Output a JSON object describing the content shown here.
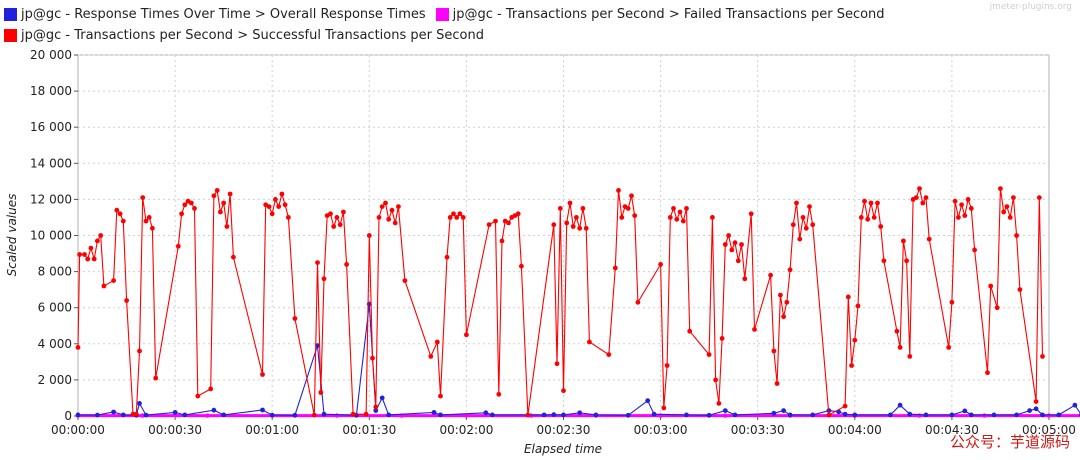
{
  "watermark_top": "jmeter-plugins.org",
  "watermark_bottom": "公众号：芋道源码",
  "chart_data": {
    "type": "line",
    "xlabel": "Elapsed time",
    "ylabel": "Scaled values",
    "xlim": [
      0,
      300
    ],
    "ylim": [
      0,
      20000
    ],
    "y_ticks": [
      0,
      2000,
      4000,
      6000,
      8000,
      10000,
      12000,
      14000,
      16000,
      18000,
      20000
    ],
    "y_tick_labels": [
      "0",
      "2 000",
      "4 000",
      "6 000",
      "8 000",
      "10 000",
      "12 000",
      "14 000",
      "16 000",
      "18 000",
      "20 000"
    ],
    "x_ticks": [
      0,
      30,
      60,
      90,
      120,
      150,
      180,
      210,
      240,
      270,
      300
    ],
    "x_tick_labels": [
      "00:00:00",
      "00:00:30",
      "00:01:00",
      "00:01:30",
      "00:02:00",
      "00:02:30",
      "00:03:00",
      "00:03:30",
      "00:04:00",
      "00:04:30",
      "00:05:00"
    ],
    "grid": true,
    "legend_position": "top",
    "series": [
      {
        "name": "jp@gc - Response Times Over Time > Overall Response Times",
        "color": "#2222dd",
        "points": [
          [
            0,
            60
          ],
          [
            6,
            50
          ],
          [
            11,
            220
          ],
          [
            14,
            60
          ],
          [
            18,
            40
          ],
          [
            19,
            700
          ],
          [
            21,
            50
          ],
          [
            30,
            200
          ],
          [
            33,
            60
          ],
          [
            42,
            320
          ],
          [
            45,
            60
          ],
          [
            57,
            330
          ],
          [
            60,
            50
          ],
          [
            67,
            40
          ],
          [
            74,
            3900
          ],
          [
            76,
            100
          ],
          [
            86,
            40
          ],
          [
            90,
            6200
          ],
          [
            92,
            300
          ],
          [
            94,
            1000
          ],
          [
            96,
            60
          ],
          [
            110,
            200
          ],
          [
            112,
            60
          ],
          [
            126,
            180
          ],
          [
            128,
            60
          ],
          [
            144,
            60
          ],
          [
            147,
            70
          ],
          [
            150,
            60
          ],
          [
            155,
            180
          ],
          [
            160,
            60
          ],
          [
            170,
            40
          ],
          [
            176,
            850
          ],
          [
            178,
            100
          ],
          [
            188,
            60
          ],
          [
            195,
            40
          ],
          [
            200,
            300
          ],
          [
            203,
            60
          ],
          [
            215,
            150
          ],
          [
            218,
            300
          ],
          [
            220,
            60
          ],
          [
            227,
            60
          ],
          [
            232,
            300
          ],
          [
            235,
            230
          ],
          [
            237,
            100
          ],
          [
            240,
            60
          ],
          [
            251,
            60
          ],
          [
            254,
            600
          ],
          [
            257,
            100
          ],
          [
            262,
            60
          ],
          [
            270,
            60
          ],
          [
            274,
            280
          ],
          [
            276,
            60
          ],
          [
            283,
            60
          ],
          [
            290,
            60
          ],
          [
            294,
            300
          ],
          [
            296,
            400
          ],
          [
            298,
            60
          ],
          [
            303,
            60
          ],
          [
            308,
            600
          ],
          [
            310,
            60
          ]
        ]
      },
      {
        "name": "jp@gc - Transactions per Second > Failed Transactions per Second",
        "color": "#ff00ff",
        "points": [
          [
            0,
            20
          ],
          [
            20,
            20
          ],
          [
            40,
            20
          ],
          [
            60,
            20
          ],
          [
            80,
            20
          ],
          [
            100,
            20
          ],
          [
            120,
            20
          ],
          [
            140,
            20
          ],
          [
            160,
            20
          ],
          [
            180,
            20
          ],
          [
            200,
            20
          ],
          [
            220,
            20
          ],
          [
            240,
            20
          ],
          [
            260,
            20
          ],
          [
            280,
            20
          ],
          [
            300,
            20
          ],
          [
            311,
            20
          ]
        ]
      },
      {
        "name": "jp@gc - Transactions per Second > Successful Transactions per Second",
        "color": "#ff0000",
        "points": [
          [
            0,
            3800
          ],
          [
            0.5,
            8950
          ],
          [
            2,
            8950
          ],
          [
            3,
            8700
          ],
          [
            4,
            9300
          ],
          [
            5,
            8700
          ],
          [
            6,
            9700
          ],
          [
            7,
            10000
          ],
          [
            8,
            7200
          ],
          [
            11,
            7500
          ],
          [
            12,
            11400
          ],
          [
            13,
            11200
          ],
          [
            14,
            10800
          ],
          [
            15,
            6400
          ],
          [
            17,
            100
          ],
          [
            18,
            100
          ],
          [
            19,
            3600
          ],
          [
            20,
            12100
          ],
          [
            21,
            10800
          ],
          [
            22,
            11000
          ],
          [
            23,
            10400
          ],
          [
            24,
            2100
          ],
          [
            31,
            9400
          ],
          [
            32,
            11200
          ],
          [
            33,
            11700
          ],
          [
            34,
            11900
          ],
          [
            35,
            11800
          ],
          [
            36,
            11500
          ],
          [
            37,
            1100
          ],
          [
            41,
            1500
          ],
          [
            42,
            12200
          ],
          [
            43,
            12500
          ],
          [
            44,
            11300
          ],
          [
            45,
            11800
          ],
          [
            46,
            10500
          ],
          [
            47,
            12300
          ],
          [
            48,
            8800
          ],
          [
            57,
            2300
          ],
          [
            58,
            11700
          ],
          [
            59,
            11600
          ],
          [
            60,
            11200
          ],
          [
            61,
            12000
          ],
          [
            62,
            11600
          ],
          [
            63,
            12300
          ],
          [
            64,
            11700
          ],
          [
            65,
            11000
          ],
          [
            67,
            5400
          ],
          [
            73,
            50
          ],
          [
            74,
            8500
          ],
          [
            75,
            1300
          ],
          [
            76,
            7600
          ],
          [
            77,
            11100
          ],
          [
            78,
            11200
          ],
          [
            79,
            10500
          ],
          [
            80,
            11000
          ],
          [
            81,
            10600
          ],
          [
            82,
            11300
          ],
          [
            83,
            8400
          ],
          [
            85,
            100
          ],
          [
            89,
            100
          ],
          [
            90,
            10000
          ],
          [
            91,
            3200
          ],
          [
            92,
            500
          ],
          [
            93,
            11000
          ],
          [
            94,
            11600
          ],
          [
            95,
            11800
          ],
          [
            96,
            10900
          ],
          [
            97,
            11400
          ],
          [
            98,
            10700
          ],
          [
            99,
            11600
          ],
          [
            101,
            7500
          ],
          [
            109,
            3300
          ],
          [
            111,
            4100
          ],
          [
            112,
            1100
          ],
          [
            114,
            8800
          ],
          [
            115,
            11000
          ],
          [
            116,
            11200
          ],
          [
            117,
            11000
          ],
          [
            118,
            11200
          ],
          [
            119,
            11000
          ],
          [
            120,
            4500
          ],
          [
            127,
            10600
          ],
          [
            129,
            10800
          ],
          [
            130,
            1200
          ],
          [
            131,
            9700
          ],
          [
            132,
            10800
          ],
          [
            133,
            10700
          ],
          [
            134,
            11000
          ],
          [
            135,
            11100
          ],
          [
            136,
            11200
          ],
          [
            137,
            8300
          ],
          [
            139,
            50
          ],
          [
            147,
            10600
          ],
          [
            148,
            2900
          ],
          [
            149,
            11500
          ],
          [
            150,
            1400
          ],
          [
            151,
            10700
          ],
          [
            152,
            11800
          ],
          [
            153,
            10500
          ],
          [
            154,
            11000
          ],
          [
            155,
            10400
          ],
          [
            156,
            11500
          ],
          [
            157,
            10400
          ],
          [
            158,
            4100
          ],
          [
            164,
            3400
          ],
          [
            166,
            8200
          ],
          [
            167,
            12500
          ],
          [
            168,
            11000
          ],
          [
            169,
            11600
          ],
          [
            170,
            11500
          ],
          [
            171,
            12200
          ],
          [
            172,
            11100
          ],
          [
            173,
            6300
          ],
          [
            180,
            8400
          ],
          [
            181,
            450
          ],
          [
            182,
            2800
          ],
          [
            183,
            11000
          ],
          [
            184,
            11500
          ],
          [
            185,
            10900
          ],
          [
            186,
            11300
          ],
          [
            187,
            10800
          ],
          [
            188,
            11500
          ],
          [
            189,
            4700
          ],
          [
            195,
            3400
          ],
          [
            196,
            11000
          ],
          [
            197,
            2000
          ],
          [
            198,
            700
          ],
          [
            199,
            4300
          ],
          [
            200,
            9500
          ],
          [
            201,
            10000
          ],
          [
            202,
            9200
          ],
          [
            203,
            9600
          ],
          [
            204,
            8600
          ],
          [
            205,
            9500
          ],
          [
            206,
            7600
          ],
          [
            208,
            11200
          ],
          [
            209,
            4800
          ],
          [
            214,
            7800
          ],
          [
            215,
            3600
          ],
          [
            216,
            1800
          ],
          [
            217,
            6700
          ],
          [
            218,
            5500
          ],
          [
            219,
            6300
          ],
          [
            220,
            8100
          ],
          [
            221,
            10600
          ],
          [
            222,
            11800
          ],
          [
            223,
            9800
          ],
          [
            224,
            11000
          ],
          [
            225,
            10400
          ],
          [
            226,
            11600
          ],
          [
            227,
            10600
          ],
          [
            232,
            50
          ],
          [
            237,
            550
          ],
          [
            238,
            6600
          ],
          [
            239,
            2800
          ],
          [
            240,
            4200
          ],
          [
            241,
            6100
          ],
          [
            242,
            11000
          ],
          [
            243,
            11900
          ],
          [
            244,
            10900
          ],
          [
            245,
            11800
          ],
          [
            246,
            11000
          ],
          [
            247,
            11800
          ],
          [
            248,
            10500
          ],
          [
            249,
            8600
          ],
          [
            253,
            4700
          ],
          [
            254,
            3800
          ],
          [
            255,
            9700
          ],
          [
            256,
            8600
          ],
          [
            257,
            3300
          ],
          [
            258,
            12000
          ],
          [
            259,
            12100
          ],
          [
            260,
            12600
          ],
          [
            261,
            11800
          ],
          [
            262,
            12100
          ],
          [
            263,
            9800
          ],
          [
            269,
            3800
          ],
          [
            270,
            6300
          ],
          [
            271,
            11900
          ],
          [
            272,
            11000
          ],
          [
            273,
            11700
          ],
          [
            274,
            11100
          ],
          [
            275,
            12000
          ],
          [
            276,
            11500
          ],
          [
            277,
            9200
          ],
          [
            281,
            2400
          ],
          [
            282,
            7200
          ],
          [
            284,
            6000
          ],
          [
            285,
            12600
          ],
          [
            286,
            11300
          ],
          [
            287,
            11600
          ],
          [
            288,
            11000
          ],
          [
            289,
            12100
          ],
          [
            290,
            10000
          ],
          [
            291,
            7000
          ],
          [
            296,
            800
          ],
          [
            297,
            12100
          ],
          [
            298,
            3300
          ]
        ]
      }
    ]
  }
}
